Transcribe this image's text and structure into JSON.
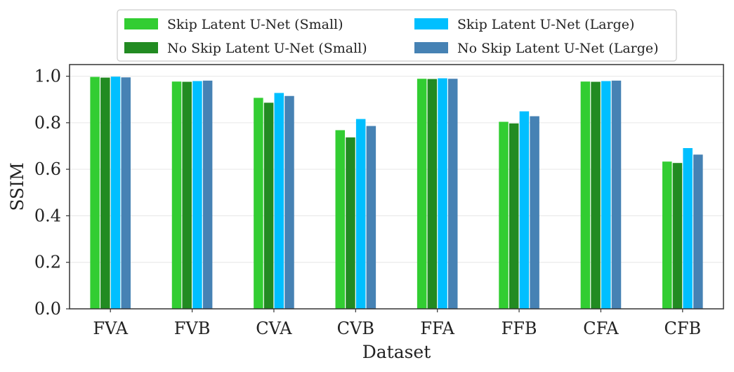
{
  "chart_data": {
    "type": "bar",
    "title": "",
    "xlabel": "Dataset",
    "ylabel": "SSIM",
    "ylim": [
      0,
      1.05
    ],
    "yticks": [
      "0.0",
      "0.2",
      "0.4",
      "0.6",
      "0.8",
      "1.0"
    ],
    "ytick_values": [
      0,
      0.2,
      0.4,
      0.6,
      0.8,
      1.0
    ],
    "grid": true,
    "legend_position": "top",
    "categories": [
      "FVA",
      "FVB",
      "CVA",
      "CVB",
      "FFA",
      "FFB",
      "CFA",
      "CFB"
    ],
    "series": [
      {
        "name": "Skip Latent U-Net (Small)",
        "color": "#32cd32",
        "values": [
          0.997,
          0.977,
          0.907,
          0.768,
          0.989,
          0.804,
          0.977,
          0.633
        ]
      },
      {
        "name": "No Skip Latent U-Net (Small)",
        "color": "#228b22",
        "values": [
          0.994,
          0.976,
          0.886,
          0.737,
          0.988,
          0.797,
          0.976,
          0.627
        ]
      },
      {
        "name": "Skip Latent U-Net (Large)",
        "color": "#00bfff",
        "values": [
          0.998,
          0.979,
          0.928,
          0.816,
          0.991,
          0.849,
          0.979,
          0.691
        ]
      },
      {
        "name": "No Skip Latent U-Net (Large)",
        "color": "#4682b4",
        "values": [
          0.995,
          0.981,
          0.915,
          0.786,
          0.989,
          0.828,
          0.981,
          0.663
        ]
      }
    ]
  }
}
